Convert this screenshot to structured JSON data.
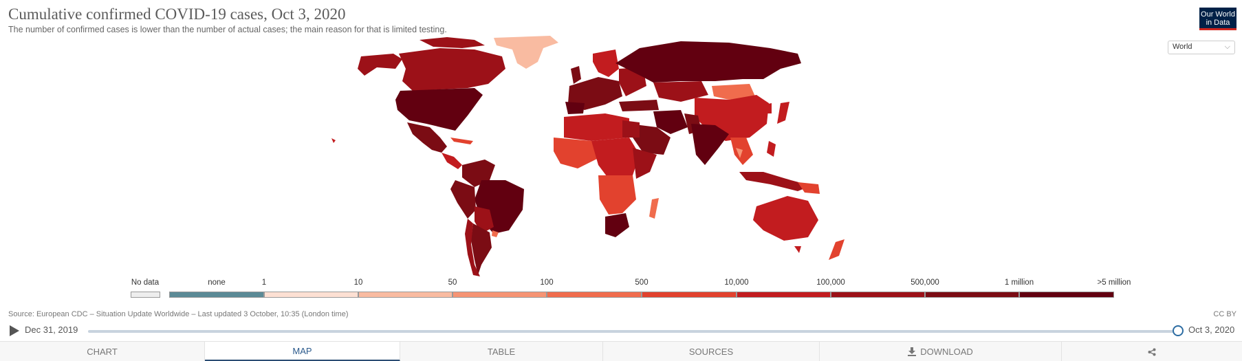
{
  "header": {
    "title": "Cumulative confirmed COVID-19 cases, Oct 3, 2020",
    "subtitle": "The number of confirmed cases is lower than the number of actual cases; the main reason for that is limited testing.",
    "logo_line1": "Our World",
    "logo_line2": "in Data"
  },
  "region_select": {
    "value": "World"
  },
  "legend": {
    "no_data_label": "No data",
    "bins": [
      {
        "label": "none",
        "color": "#5b8a96"
      },
      {
        "label": "1",
        "color": "#fde0d3"
      },
      {
        "label": "10",
        "color": "#f9bba1"
      },
      {
        "label": "50",
        "color": "#f69474"
      },
      {
        "label": "100",
        "color": "#f06c4d"
      },
      {
        "label": "500",
        "color": "#e2422e"
      },
      {
        "label": "10,000",
        "color": "#c21c1f"
      },
      {
        "label": "100,000",
        "color": "#9c1118"
      },
      {
        "label": "500,000",
        "color": "#7b0c14"
      },
      {
        "label": "1 million",
        "color": "#620010"
      },
      {
        "label": ">5 million",
        "color": ""
      }
    ]
  },
  "footer": {
    "source": "Source: European CDC – Situation Update Worldwide – Last updated 3 October, 10:35 (London time)",
    "license": "CC BY"
  },
  "timeline": {
    "start_label": "Dec 31, 2019",
    "end_label": "Oct 3, 2020",
    "position_fraction": 1.0
  },
  "tabs": [
    {
      "label": "CHART",
      "icon": ""
    },
    {
      "label": "MAP",
      "icon": ""
    },
    {
      "label": "TABLE",
      "icon": ""
    },
    {
      "label": "SOURCES",
      "icon": ""
    },
    {
      "label": "DOWNLOAD",
      "icon": "download-icon"
    },
    {
      "label": "",
      "icon": "share-icon"
    }
  ],
  "active_tab": "MAP"
}
